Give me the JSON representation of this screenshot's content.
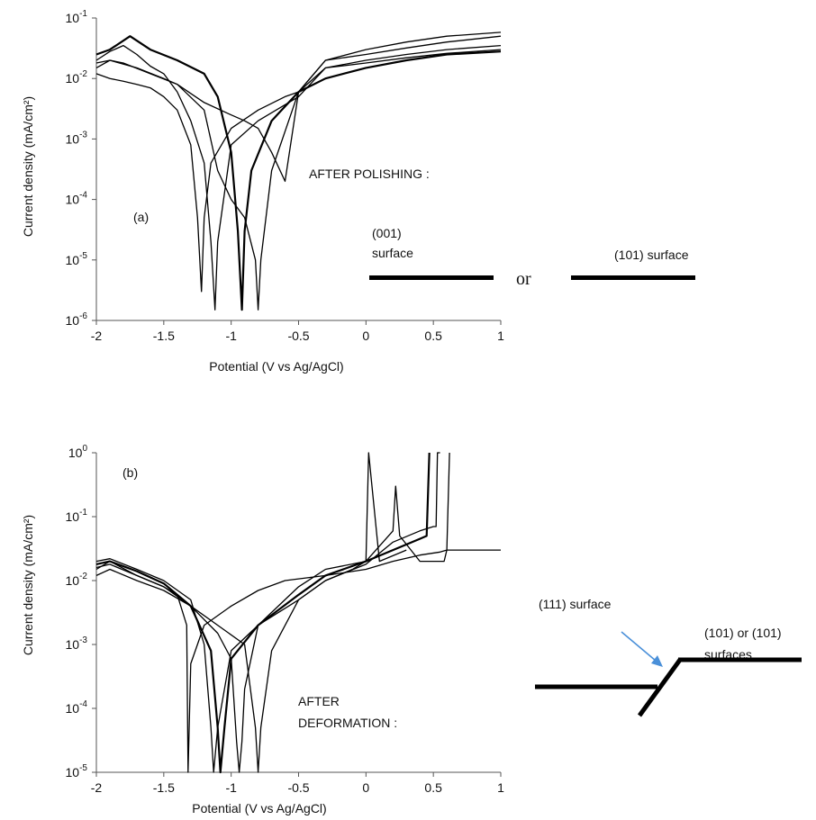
{
  "chart_data": [
    {
      "type": "line",
      "panel_label": "(a)",
      "xlabel": "Potential (V vs Ag/AgCl)",
      "ylabel": "Current density (mA/cm²)",
      "xlim": [
        -2,
        1
      ],
      "ylim": [
        1e-06,
        0.1
      ],
      "yscale": "log",
      "x_ticks": [
        "-2",
        "-1.5",
        "-1",
        "-0.5",
        "0",
        "0.5",
        "1"
      ],
      "y_ticks": [
        {
          "base": "10",
          "exp": "-1"
        },
        {
          "base": "10",
          "exp": "-2"
        },
        {
          "base": "10",
          "exp": "-3"
        },
        {
          "base": "10",
          "exp": "-4"
        },
        {
          "base": "10",
          "exp": "-5"
        },
        {
          "base": "10",
          "exp": "-6"
        }
      ],
      "grid": false,
      "series": [
        {
          "x": [
            -2.0,
            -1.9,
            -1.8,
            -1.7,
            -1.6,
            -1.5,
            -1.4,
            -1.3,
            -1.25,
            -1.22,
            -1.2,
            -1.15,
            -1.0,
            -0.8,
            -0.6,
            -0.5,
            -0.3,
            0.0,
            0.3,
            0.6,
            1.0
          ],
          "y": [
            0.012,
            0.01,
            0.009,
            0.008,
            0.007,
            0.005,
            0.003,
            0.0008,
            5e-05,
            3e-06,
            5e-05,
            0.0004,
            0.0015,
            0.003,
            0.005,
            0.006,
            0.02,
            0.025,
            0.032,
            0.04,
            0.05
          ]
        },
        {
          "x": [
            -2.0,
            -1.9,
            -1.8,
            -1.7,
            -1.6,
            -1.5,
            -1.4,
            -1.3,
            -1.2,
            -1.15,
            -1.12,
            -1.1,
            -1.0,
            -0.8,
            -0.5,
            -0.3,
            0.0,
            0.3,
            0.6,
            1.0
          ],
          "y": [
            0.02,
            0.028,
            0.035,
            0.025,
            0.016,
            0.012,
            0.006,
            0.002,
            0.0004,
            2e-05,
            1.5e-06,
            2e-05,
            0.0008,
            0.002,
            0.005,
            0.015,
            0.02,
            0.025,
            0.03,
            0.035
          ]
        },
        {
          "x": [
            -2.0,
            -1.9,
            -1.75,
            -1.6,
            -1.4,
            -1.2,
            -1.1,
            -1.0,
            -0.95,
            -0.92,
            -0.9,
            -0.85,
            -0.7,
            -0.5,
            -0.3,
            0.0,
            0.3,
            0.6,
            1.0
          ],
          "y": [
            0.025,
            0.03,
            0.05,
            0.03,
            0.02,
            0.012,
            0.005,
            0.0006,
            3e-05,
            1.5e-06,
            3e-05,
            0.0003,
            0.002,
            0.006,
            0.01,
            0.015,
            0.02,
            0.025,
            0.028
          ]
        },
        {
          "x": [
            -2.0,
            -1.9,
            -1.8,
            -1.6,
            -1.4,
            -1.2,
            -1.1,
            -1.0,
            -0.9,
            -0.82,
            -0.8,
            -0.78,
            -0.7,
            -0.5,
            -0.3,
            0.0,
            0.3,
            0.6,
            1.0
          ],
          "y": [
            0.015,
            0.02,
            0.018,
            0.012,
            0.008,
            0.003,
            0.0003,
            0.0001,
            5e-05,
            1e-05,
            1.5e-06,
            1e-05,
            0.0003,
            0.006,
            0.02,
            0.03,
            0.04,
            0.05,
            0.058
          ]
        },
        {
          "x": [
            -2.0,
            -1.9,
            -1.7,
            -1.5,
            -1.4,
            -1.2,
            -1.0,
            -0.9,
            -0.8,
            -0.7,
            -0.6,
            -0.5,
            -0.3,
            0.0,
            0.3,
            0.6,
            1.0
          ],
          "y": [
            0.018,
            0.02,
            0.015,
            0.01,
            0.008,
            0.004,
            0.0025,
            0.002,
            0.0015,
            0.0006,
            0.0002,
            0.006,
            0.015,
            0.018,
            0.022,
            0.026,
            0.03
          ]
        }
      ],
      "annotations": {
        "title": "AFTER POLISHING :",
        "left_surface": [
          "(001)",
          "surface"
        ],
        "connector": "or",
        "right_surface": "(101) surface"
      }
    },
    {
      "type": "line",
      "panel_label": "(b)",
      "xlabel": "Potential (V vs Ag/AgCl)",
      "ylabel": "Current density (mA/cm²)",
      "xlim": [
        -2,
        1
      ],
      "ylim": [
        1e-05,
        1
      ],
      "yscale": "log",
      "x_ticks": [
        "-2",
        "-1.5",
        "-1",
        "-0.5",
        "0",
        "0.5",
        "1"
      ],
      "y_ticks": [
        {
          "base": "10",
          "exp": "0"
        },
        {
          "base": "10",
          "exp": "-1"
        },
        {
          "base": "10",
          "exp": "-2"
        },
        {
          "base": "10",
          "exp": "-3"
        },
        {
          "base": "10",
          "exp": "-4"
        },
        {
          "base": "10",
          "exp": "-5"
        }
      ],
      "grid": false,
      "series": [
        {
          "x": [
            -2.0,
            -1.9,
            -1.7,
            -1.5,
            -1.4,
            -1.33,
            -1.32,
            -1.3,
            -1.2,
            -1.0,
            -0.8,
            -0.6,
            -0.3,
            0.0,
            0.2,
            0.4,
            0.55,
            0.6,
            1.0
          ],
          "y": [
            0.015,
            0.02,
            0.012,
            0.008,
            0.006,
            0.002,
            1e-05,
            0.0005,
            0.002,
            0.004,
            0.007,
            0.01,
            0.012,
            0.015,
            0.02,
            0.025,
            0.028,
            0.03,
            0.03
          ]
        },
        {
          "x": [
            -2.0,
            -1.9,
            -1.7,
            -1.5,
            -1.3,
            -1.2,
            -1.15,
            -1.13,
            -1.1,
            -1.0,
            -0.8,
            -0.5,
            -0.3,
            0.0,
            0.2,
            0.4,
            0.5,
            0.52,
            0.53,
            0.55
          ],
          "y": [
            0.02,
            0.022,
            0.015,
            0.01,
            0.005,
            0.001,
            5e-05,
            1e-05,
            5e-05,
            0.0008,
            0.002,
            0.005,
            0.01,
            0.018,
            0.04,
            0.06,
            0.07,
            0.07,
            1,
            1
          ]
        },
        {
          "x": [
            -2.0,
            -1.9,
            -1.7,
            -1.5,
            -1.3,
            -1.15,
            -1.1,
            -1.08,
            -1.05,
            -1.0,
            -0.8,
            -0.5,
            -0.3,
            0.0,
            0.2,
            0.4,
            0.45,
            0.47
          ],
          "y": [
            0.018,
            0.02,
            0.014,
            0.009,
            0.004,
            0.0008,
            5e-05,
            1e-05,
            5e-05,
            0.0006,
            0.002,
            0.006,
            0.012,
            0.02,
            0.03,
            0.045,
            0.05,
            1
          ]
        },
        {
          "x": [
            -2.0,
            -1.9,
            -1.7,
            -1.5,
            -1.3,
            -1.1,
            -1.0,
            -0.96,
            -0.94,
            -0.92,
            -0.9,
            -0.8,
            -0.5,
            -0.3,
            0.0,
            0.2,
            0.22,
            0.25,
            0.4,
            0.58,
            0.6,
            0.62
          ],
          "y": [
            0.016,
            0.018,
            0.012,
            0.008,
            0.004,
            0.0015,
            0.0006,
            3e-05,
            1e-05,
            3e-05,
            0.0002,
            0.002,
            0.008,
            0.015,
            0.02,
            0.06,
            0.3,
            0.05,
            0.02,
            0.02,
            0.03,
            1
          ]
        },
        {
          "x": [
            -2.0,
            -1.9,
            -1.7,
            -1.5,
            -1.3,
            -1.1,
            -0.9,
            -0.82,
            -0.8,
            -0.78,
            -0.7,
            -0.5,
            -0.3,
            -0.1,
            0.0,
            0.02,
            0.1,
            0.3
          ],
          "y": [
            0.012,
            0.015,
            0.01,
            0.007,
            0.004,
            0.002,
            0.001,
            5e-05,
            1e-05,
            5e-05,
            0.0008,
            0.005,
            0.01,
            0.015,
            0.02,
            1,
            0.02,
            0.03
          ]
        }
      ],
      "annotations": {
        "title": [
          "AFTER",
          "DEFORMATION :"
        ],
        "label_111": "(111) surface",
        "label_101": [
          "(101) or (101)",
          "surfaces"
        ]
      }
    }
  ]
}
